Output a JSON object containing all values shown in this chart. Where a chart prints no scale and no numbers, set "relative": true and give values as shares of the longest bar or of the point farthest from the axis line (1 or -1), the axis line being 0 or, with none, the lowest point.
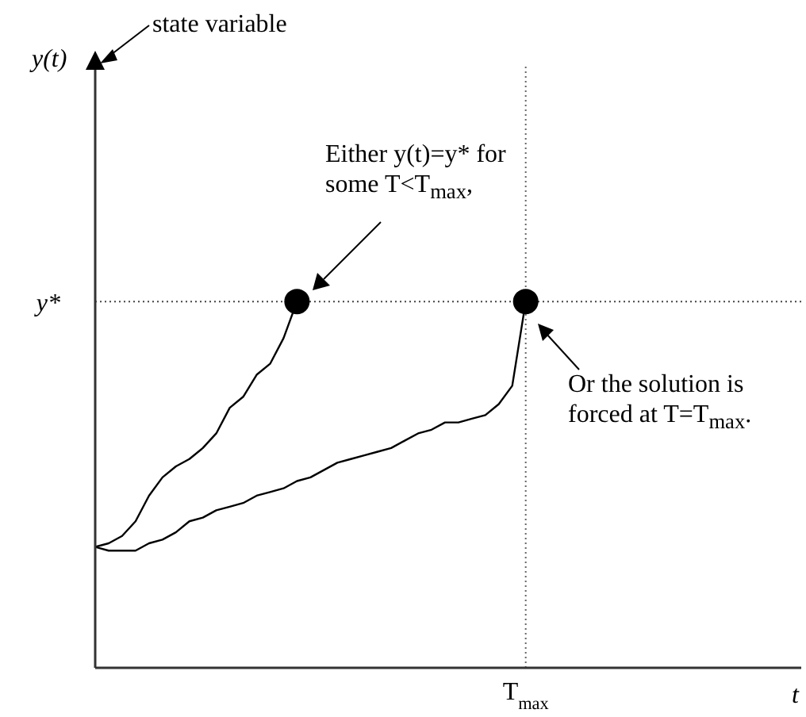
{
  "chart_data": {
    "type": "line",
    "relative": true,
    "line_style": "solid",
    "grid": false,
    "categories": [
      null,
      null,
      null,
      null,
      null,
      null,
      null,
      null,
      null,
      null,
      null,
      null,
      null,
      null,
      null,
      null,
      null,
      null,
      null,
      null,
      null,
      null,
      null,
      null,
      null,
      null,
      null,
      null,
      null,
      null,
      null,
      null,
      null
    ],
    "series": [
      {
        "color": "#000000",
        "values": [
          0.33,
          0.34,
          0.36,
          0.4,
          0.47,
          0.52,
          0.55,
          0.57,
          0.6,
          0.64,
          0.71,
          0.74,
          0.8,
          0.83,
          0.9,
          1,
          null,
          null,
          null,
          null,
          null,
          null,
          null,
          null,
          null,
          null,
          null,
          null,
          null,
          null,
          null,
          null,
          null
        ]
      },
      {
        "color": "#000000",
        "values": [
          0.33,
          0.32,
          0.32,
          0.32,
          0.34,
          0.35,
          0.37,
          0.4,
          0.41,
          0.43,
          0.44,
          0.45,
          0.47,
          0.48,
          0.49,
          0.51,
          0.52,
          0.54,
          0.56,
          0.57,
          0.58,
          0.59,
          0.6,
          0.62,
          0.64,
          0.65,
          0.67,
          0.67,
          0.68,
          0.69,
          0.72,
          0.77,
          1
        ]
      }
    ],
    "ref_lines": [
      {
        "axis": "y",
        "value": 1,
        "label": "y*",
        "line_style": "dotted"
      },
      {
        "axis": "x",
        "label": "T$_{max}$",
        "line_style": "dotted"
      }
    ],
    "annotations": [
      "state variable",
      "Either y(t)=y* for some T<T$_{max}$,",
      "Or the solution is forced at T=T$_{max}$.",
      "y(t)",
      "t"
    ]
  }
}
